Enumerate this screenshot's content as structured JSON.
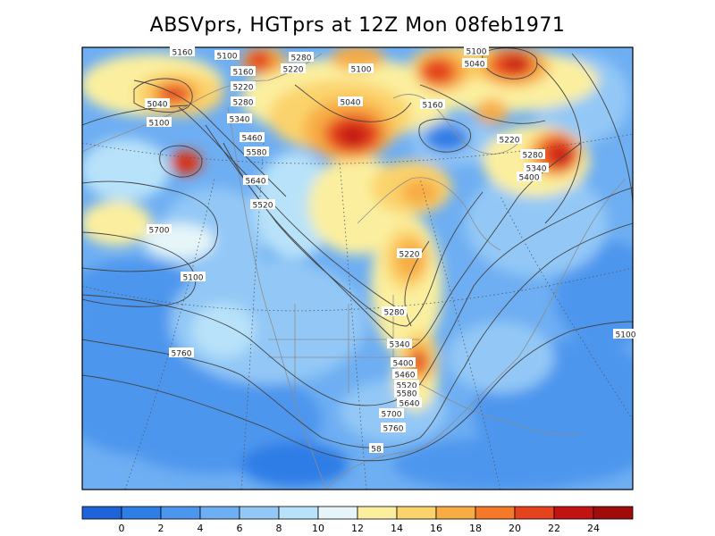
{
  "title": "ABSVprs, HGTprs at 12Z Mon 08feb1971",
  "colorbar": {
    "ticks": [
      "0",
      "2",
      "4",
      "6",
      "8",
      "10",
      "12",
      "14",
      "16",
      "18",
      "20",
      "22",
      "24"
    ],
    "colors": [
      "#1f63d8",
      "#2f7de6",
      "#4d96ee",
      "#6eaef2",
      "#93c8f6",
      "#b8e2f9",
      "#e6f6f8",
      "#fbef9f",
      "#fbd36c",
      "#f8ac44",
      "#f47a2a",
      "#e5431e",
      "#c21212",
      "#a00b0b"
    ]
  },
  "contour_labels": [
    "5160",
    "5100",
    "5280",
    "5220",
    "5100",
    "5040",
    "5160",
    "5220",
    "5280",
    "5340",
    "5040",
    "5100",
    "5040",
    "5100",
    "5160",
    "5220",
    "5280",
    "5340",
    "5400",
    "5460",
    "5580",
    "5640",
    "5520",
    "5700",
    "5100",
    "5220",
    "5280",
    "5340",
    "5400",
    "5460",
    "5520",
    "5580",
    "5640",
    "5700",
    "5760",
    "5760",
    "58",
    "5100"
  ]
}
